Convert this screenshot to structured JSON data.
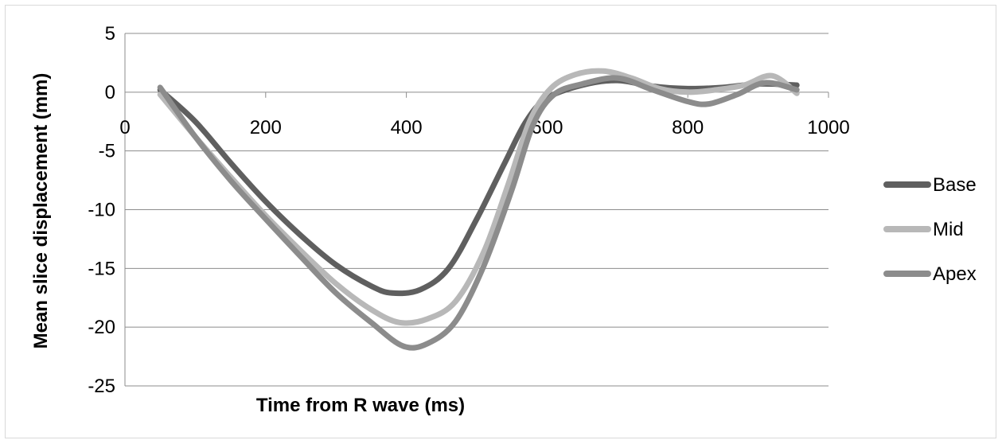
{
  "chart_data": {
    "type": "line",
    "title": "",
    "xlabel": "Time from R wave (ms)",
    "ylabel": "Mean slice displacement (mm)",
    "xlim": [
      0,
      1000
    ],
    "ylim": [
      -25,
      5
    ],
    "x_ticks": [
      0,
      200,
      400,
      600,
      800,
      1000
    ],
    "y_ticks": [
      5,
      0,
      -5,
      -10,
      -15,
      -20,
      -25
    ],
    "x_tick_labels": [
      "0",
      "200",
      "400",
      "600",
      "800",
      "1000"
    ],
    "y_tick_labels": [
      "5",
      "0",
      "-5",
      "-10",
      "-15",
      "-20",
      "-25"
    ],
    "grid": "horizontal",
    "legend_position": "right",
    "series": [
      {
        "name": "Base",
        "color": "#5f5f5f",
        "points": [
          [
            50,
            0.2
          ],
          [
            100,
            -2.5
          ],
          [
            150,
            -6.0
          ],
          [
            200,
            -9.3
          ],
          [
            250,
            -12.2
          ],
          [
            300,
            -14.7
          ],
          [
            350,
            -16.5
          ],
          [
            380,
            -17.1
          ],
          [
            420,
            -16.8
          ],
          [
            460,
            -15.0
          ],
          [
            500,
            -10.8
          ],
          [
            540,
            -6.0
          ],
          [
            570,
            -2.5
          ],
          [
            600,
            -0.5
          ],
          [
            650,
            0.6
          ],
          [
            700,
            1.0
          ],
          [
            750,
            0.5
          ],
          [
            800,
            0.3
          ],
          [
            850,
            0.4
          ],
          [
            900,
            0.7
          ],
          [
            955,
            0.6
          ]
        ]
      },
      {
        "name": "Mid",
        "color": "#b8b8b8",
        "points": [
          [
            50,
            -0.2
          ],
          [
            100,
            -3.8
          ],
          [
            150,
            -7.2
          ],
          [
            200,
            -10.5
          ],
          [
            250,
            -13.5
          ],
          [
            300,
            -16.3
          ],
          [
            350,
            -18.5
          ],
          [
            390,
            -19.6
          ],
          [
            430,
            -19.3
          ],
          [
            470,
            -17.8
          ],
          [
            510,
            -13.6
          ],
          [
            545,
            -7.8
          ],
          [
            575,
            -2.5
          ],
          [
            605,
            0.3
          ],
          [
            640,
            1.5
          ],
          [
            680,
            1.8
          ],
          [
            720,
            1.2
          ],
          [
            760,
            0.3
          ],
          [
            800,
            0.0
          ],
          [
            840,
            0.2
          ],
          [
            880,
            0.6
          ],
          [
            920,
            1.4
          ],
          [
            955,
            -0.1
          ]
        ]
      },
      {
        "name": "Apex",
        "color": "#8c8c8c",
        "points": [
          [
            50,
            0.4
          ],
          [
            100,
            -3.8
          ],
          [
            150,
            -7.5
          ],
          [
            200,
            -10.8
          ],
          [
            250,
            -14.0
          ],
          [
            300,
            -17.1
          ],
          [
            350,
            -19.6
          ],
          [
            395,
            -21.6
          ],
          [
            430,
            -21.4
          ],
          [
            470,
            -19.5
          ],
          [
            510,
            -14.8
          ],
          [
            550,
            -8.3
          ],
          [
            580,
            -2.8
          ],
          [
            610,
            -0.2
          ],
          [
            650,
            0.7
          ],
          [
            700,
            1.2
          ],
          [
            750,
            0.2
          ],
          [
            800,
            -0.8
          ],
          [
            830,
            -1.0
          ],
          [
            870,
            -0.2
          ],
          [
            910,
            0.8
          ],
          [
            955,
            0.2
          ]
        ]
      }
    ]
  }
}
